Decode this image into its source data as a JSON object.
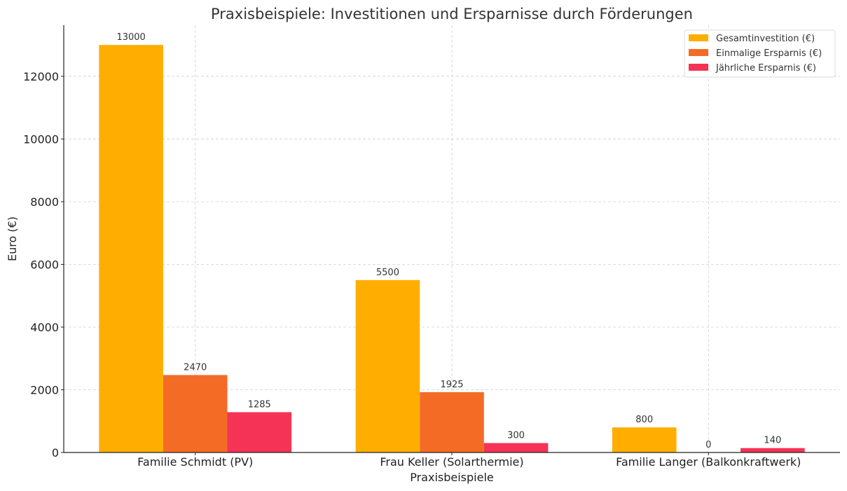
{
  "chart_data": {
    "type": "bar",
    "title": "Praxisbeispiele: Investitionen und Ersparnisse durch Förderungen",
    "xlabel": "Praxisbeispiele",
    "ylabel": "Euro (€)",
    "categories": [
      "Familie Schmidt (PV)",
      "Frau Keller (Solarthermie)",
      "Familie Langer (Balkonkraftwerk)"
    ],
    "series": [
      {
        "name": "Gesamtinvestition (€)",
        "values": [
          13000,
          5500,
          800
        ],
        "color": "#FFAE00"
      },
      {
        "name": "Einmalige Ersparnis (€)",
        "values": [
          2470,
          1925,
          0
        ],
        "color": "#F46B25"
      },
      {
        "name": "Jährliche Ersparnis (€)",
        "values": [
          1285,
          300,
          140
        ],
        "color": "#F43356"
      }
    ],
    "yticks": [
      0,
      2000,
      4000,
      6000,
      8000,
      10000,
      12000
    ],
    "ylim": [
      0,
      13630
    ],
    "grid": true,
    "legend": "top-right"
  }
}
